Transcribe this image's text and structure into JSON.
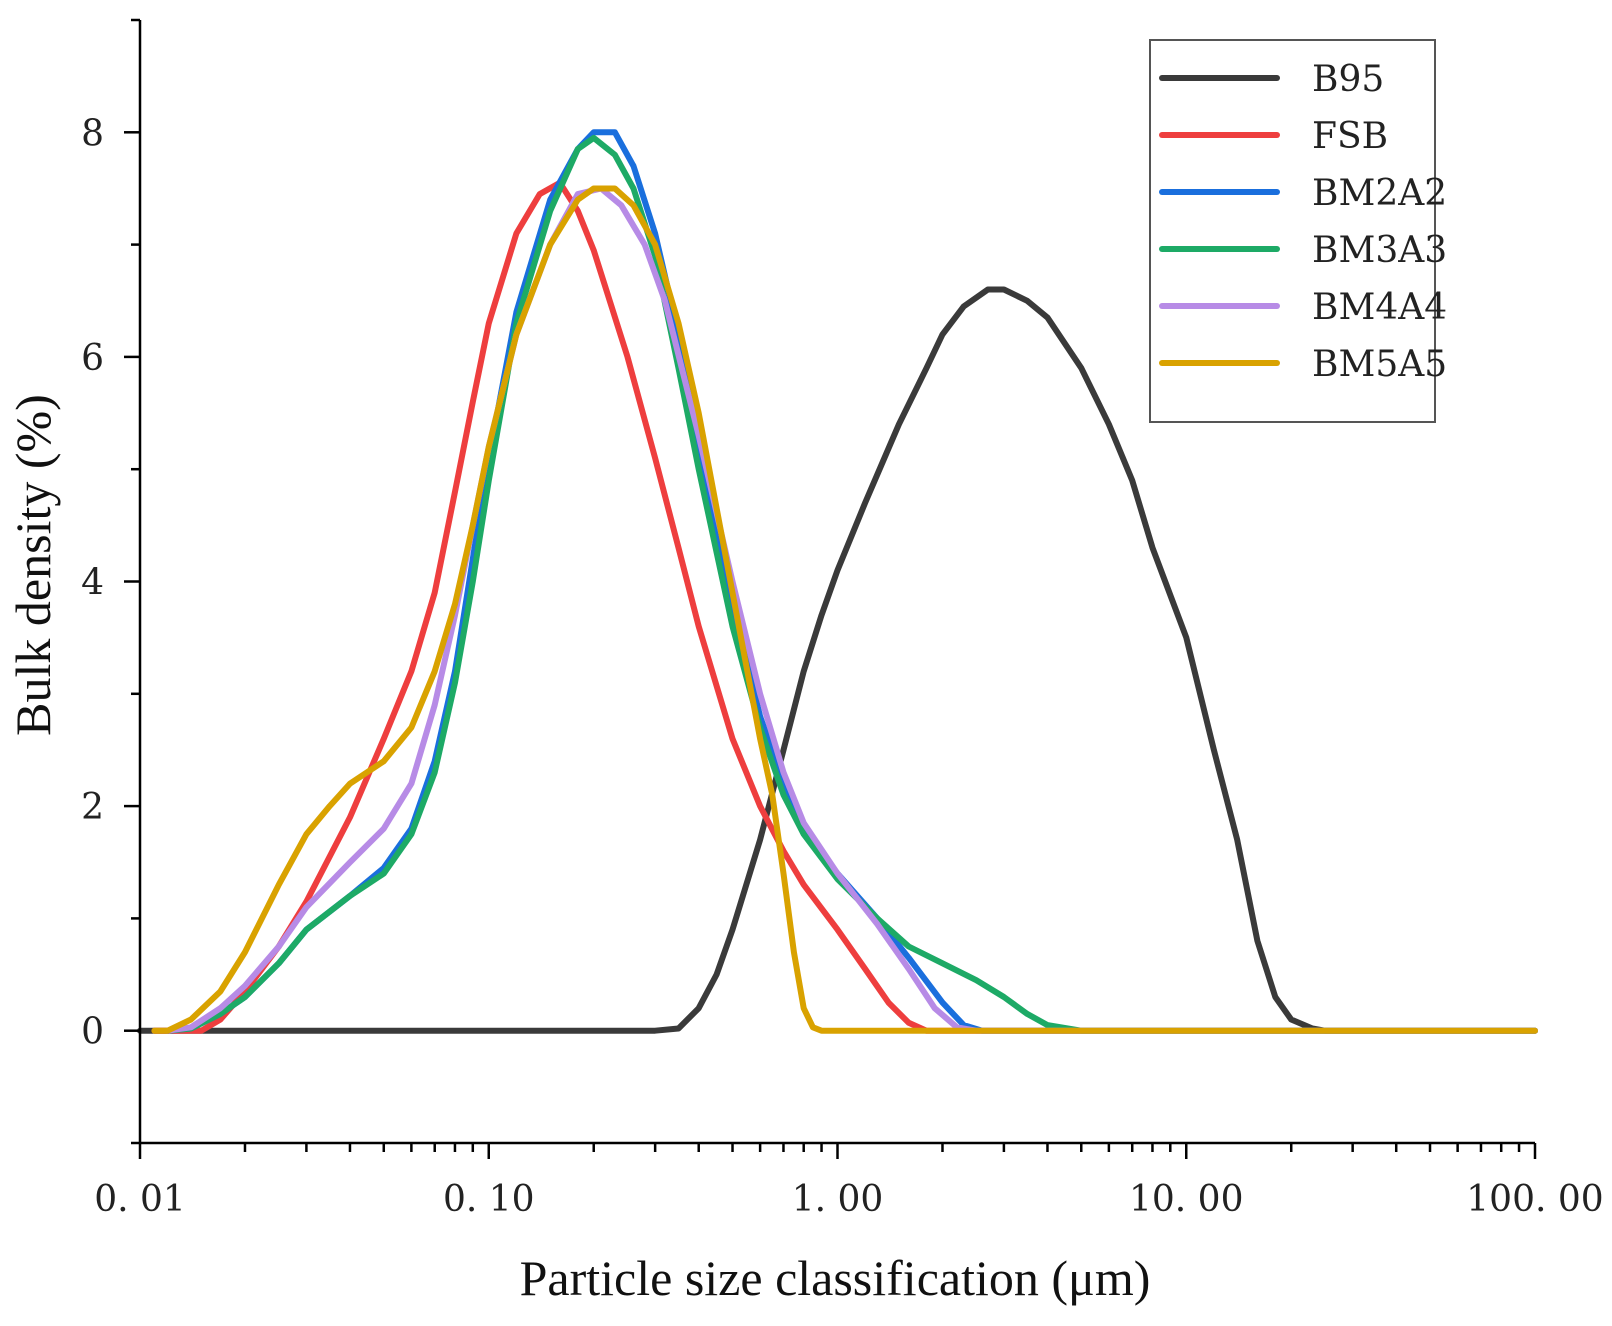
{
  "chart_data": {
    "type": "line",
    "xscale": "log",
    "xlabel": "Particle size classification (μm)",
    "ylabel": "Bulk density (%)",
    "xlim": [
      0.01,
      100
    ],
    "ylim": [
      -1,
      9
    ],
    "x_ticks": [
      {
        "value": 0.01,
        "label": "0. 01"
      },
      {
        "value": 0.1,
        "label": "0. 10"
      },
      {
        "value": 1,
        "label": "1. 00"
      },
      {
        "value": 10,
        "label": "10. 00"
      },
      {
        "value": 100,
        "label": "100. 00"
      }
    ],
    "y_ticks": [
      {
        "value": 0,
        "label": "0"
      },
      {
        "value": 2,
        "label": "2"
      },
      {
        "value": 4,
        "label": "4"
      },
      {
        "value": 6,
        "label": "6"
      },
      {
        "value": 8,
        "label": "8"
      }
    ],
    "legend_position": "top-right",
    "series": [
      {
        "name": "B95",
        "color": "#3a3a3a",
        "points": [
          [
            0.01,
            0
          ],
          [
            0.3,
            0
          ],
          [
            0.35,
            0.02
          ],
          [
            0.4,
            0.2
          ],
          [
            0.45,
            0.5
          ],
          [
            0.5,
            0.9
          ],
          [
            0.6,
            1.7
          ],
          [
            0.7,
            2.5
          ],
          [
            0.8,
            3.2
          ],
          [
            0.9,
            3.7
          ],
          [
            1.0,
            4.1
          ],
          [
            1.2,
            4.7
          ],
          [
            1.5,
            5.4
          ],
          [
            1.8,
            5.9
          ],
          [
            2.0,
            6.2
          ],
          [
            2.3,
            6.45
          ],
          [
            2.7,
            6.6
          ],
          [
            3.0,
            6.6
          ],
          [
            3.5,
            6.5
          ],
          [
            4.0,
            6.35
          ],
          [
            5.0,
            5.9
          ],
          [
            6.0,
            5.4
          ],
          [
            7.0,
            4.9
          ],
          [
            8.0,
            4.3
          ],
          [
            10.0,
            3.5
          ],
          [
            12.0,
            2.5
          ],
          [
            14.0,
            1.7
          ],
          [
            16.0,
            0.8
          ],
          [
            18.0,
            0.3
          ],
          [
            20.0,
            0.1
          ],
          [
            23.0,
            0.02
          ],
          [
            25.0,
            0
          ],
          [
            100,
            0
          ]
        ]
      },
      {
        "name": "FSB",
        "color": "#ee3e3e",
        "points": [
          [
            0.011,
            0
          ],
          [
            0.015,
            0
          ],
          [
            0.017,
            0.1
          ],
          [
            0.02,
            0.35
          ],
          [
            0.025,
            0.75
          ],
          [
            0.03,
            1.15
          ],
          [
            0.04,
            1.9
          ],
          [
            0.05,
            2.6
          ],
          [
            0.06,
            3.2
          ],
          [
            0.07,
            3.9
          ],
          [
            0.08,
            4.8
          ],
          [
            0.09,
            5.6
          ],
          [
            0.1,
            6.3
          ],
          [
            0.12,
            7.1
          ],
          [
            0.14,
            7.45
          ],
          [
            0.16,
            7.55
          ],
          [
            0.18,
            7.3
          ],
          [
            0.2,
            6.95
          ],
          [
            0.25,
            6.0
          ],
          [
            0.3,
            5.1
          ],
          [
            0.35,
            4.3
          ],
          [
            0.4,
            3.6
          ],
          [
            0.5,
            2.6
          ],
          [
            0.6,
            2.0
          ],
          [
            0.7,
            1.6
          ],
          [
            0.8,
            1.3
          ],
          [
            1.0,
            0.9
          ],
          [
            1.2,
            0.55
          ],
          [
            1.4,
            0.25
          ],
          [
            1.6,
            0.07
          ],
          [
            1.8,
            0
          ],
          [
            100,
            0
          ]
        ]
      },
      {
        "name": "BM2A2",
        "color": "#1a6fdd",
        "points": [
          [
            0.012,
            0
          ],
          [
            0.014,
            0.02
          ],
          [
            0.017,
            0.15
          ],
          [
            0.02,
            0.3
          ],
          [
            0.025,
            0.6
          ],
          [
            0.03,
            0.9
          ],
          [
            0.04,
            1.2
          ],
          [
            0.05,
            1.45
          ],
          [
            0.06,
            1.8
          ],
          [
            0.07,
            2.4
          ],
          [
            0.08,
            3.2
          ],
          [
            0.09,
            4.2
          ],
          [
            0.1,
            5.1
          ],
          [
            0.12,
            6.4
          ],
          [
            0.15,
            7.4
          ],
          [
            0.18,
            7.85
          ],
          [
            0.2,
            8.0
          ],
          [
            0.23,
            8.0
          ],
          [
            0.26,
            7.7
          ],
          [
            0.3,
            7.1
          ],
          [
            0.35,
            6.2
          ],
          [
            0.4,
            5.2
          ],
          [
            0.5,
            3.8
          ],
          [
            0.6,
            2.8
          ],
          [
            0.7,
            2.2
          ],
          [
            0.8,
            1.8
          ],
          [
            1.0,
            1.4
          ],
          [
            1.3,
            1.0
          ],
          [
            1.6,
            0.65
          ],
          [
            2.0,
            0.25
          ],
          [
            2.3,
            0.05
          ],
          [
            2.6,
            0
          ],
          [
            100,
            0
          ]
        ]
      },
      {
        "name": "BM3A3",
        "color": "#1daa66",
        "points": [
          [
            0.012,
            0
          ],
          [
            0.014,
            0.02
          ],
          [
            0.017,
            0.15
          ],
          [
            0.02,
            0.3
          ],
          [
            0.025,
            0.6
          ],
          [
            0.03,
            0.9
          ],
          [
            0.04,
            1.2
          ],
          [
            0.05,
            1.4
          ],
          [
            0.06,
            1.75
          ],
          [
            0.07,
            2.3
          ],
          [
            0.08,
            3.1
          ],
          [
            0.09,
            4.0
          ],
          [
            0.1,
            4.9
          ],
          [
            0.12,
            6.3
          ],
          [
            0.15,
            7.3
          ],
          [
            0.18,
            7.85
          ],
          [
            0.2,
            7.95
          ],
          [
            0.23,
            7.8
          ],
          [
            0.26,
            7.5
          ],
          [
            0.3,
            6.9
          ],
          [
            0.35,
            5.9
          ],
          [
            0.4,
            5.0
          ],
          [
            0.5,
            3.6
          ],
          [
            0.6,
            2.7
          ],
          [
            0.7,
            2.1
          ],
          [
            0.8,
            1.75
          ],
          [
            1.0,
            1.35
          ],
          [
            1.3,
            1.0
          ],
          [
            1.6,
            0.75
          ],
          [
            2.0,
            0.6
          ],
          [
            2.5,
            0.45
          ],
          [
            3.0,
            0.3
          ],
          [
            3.5,
            0.15
          ],
          [
            4.0,
            0.05
          ],
          [
            5.0,
            0
          ],
          [
            100,
            0
          ]
        ]
      },
      {
        "name": "BM4A4",
        "color": "#b78be6",
        "points": [
          [
            0.012,
            0
          ],
          [
            0.014,
            0.03
          ],
          [
            0.017,
            0.2
          ],
          [
            0.02,
            0.4
          ],
          [
            0.025,
            0.75
          ],
          [
            0.03,
            1.1
          ],
          [
            0.04,
            1.5
          ],
          [
            0.05,
            1.8
          ],
          [
            0.06,
            2.2
          ],
          [
            0.07,
            2.9
          ],
          [
            0.08,
            3.7
          ],
          [
            0.09,
            4.5
          ],
          [
            0.1,
            5.2
          ],
          [
            0.12,
            6.2
          ],
          [
            0.15,
            7.0
          ],
          [
            0.18,
            7.45
          ],
          [
            0.21,
            7.5
          ],
          [
            0.24,
            7.35
          ],
          [
            0.28,
            7.0
          ],
          [
            0.32,
            6.5
          ],
          [
            0.4,
            5.3
          ],
          [
            0.5,
            4.0
          ],
          [
            0.6,
            3.0
          ],
          [
            0.7,
            2.3
          ],
          [
            0.8,
            1.85
          ],
          [
            1.0,
            1.4
          ],
          [
            1.3,
            0.95
          ],
          [
            1.6,
            0.55
          ],
          [
            1.9,
            0.2
          ],
          [
            2.2,
            0.03
          ],
          [
            2.5,
            0
          ],
          [
            100,
            0
          ]
        ]
      },
      {
        "name": "BM5A5",
        "color": "#d9a200",
        "points": [
          [
            0.011,
            0
          ],
          [
            0.012,
            0
          ],
          [
            0.014,
            0.1
          ],
          [
            0.017,
            0.35
          ],
          [
            0.02,
            0.7
          ],
          [
            0.025,
            1.3
          ],
          [
            0.03,
            1.75
          ],
          [
            0.035,
            2.0
          ],
          [
            0.04,
            2.2
          ],
          [
            0.05,
            2.4
          ],
          [
            0.06,
            2.7
          ],
          [
            0.07,
            3.2
          ],
          [
            0.08,
            3.8
          ],
          [
            0.09,
            4.5
          ],
          [
            0.1,
            5.2
          ],
          [
            0.12,
            6.2
          ],
          [
            0.15,
            7.0
          ],
          [
            0.18,
            7.4
          ],
          [
            0.2,
            7.5
          ],
          [
            0.23,
            7.5
          ],
          [
            0.26,
            7.35
          ],
          [
            0.3,
            7.0
          ],
          [
            0.35,
            6.3
          ],
          [
            0.4,
            5.5
          ],
          [
            0.5,
            3.9
          ],
          [
            0.6,
            2.6
          ],
          [
            0.65,
            2.1
          ],
          [
            0.7,
            1.4
          ],
          [
            0.75,
            0.7
          ],
          [
            0.8,
            0.2
          ],
          [
            0.85,
            0.03
          ],
          [
            0.9,
            0
          ],
          [
            100,
            0
          ]
        ]
      }
    ]
  }
}
